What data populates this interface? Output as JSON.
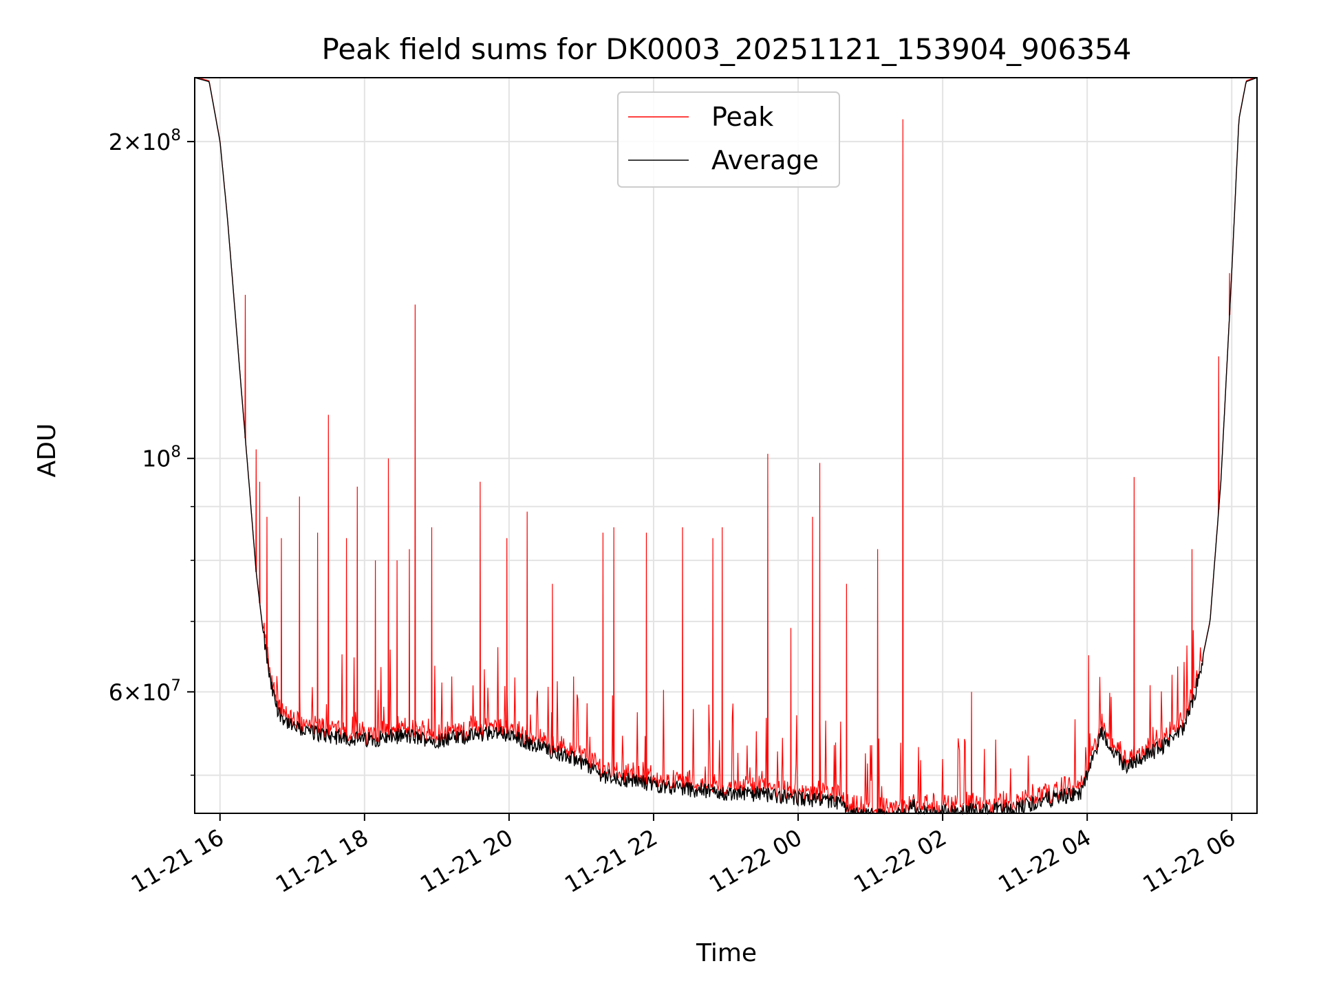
{
  "chart_data": {
    "type": "line",
    "title": "Peak field sums for DK0003_20251121_153904_906354",
    "xlabel": "Time",
    "ylabel": "ADU",
    "yscale": "log",
    "xlim": [
      15.65,
      30.35
    ],
    "ylim": [
      46000000,
      230000000
    ],
    "x_ticks": [
      {
        "value": 16,
        "label": "11-21 16"
      },
      {
        "value": 18,
        "label": "11-21 18"
      },
      {
        "value": 20,
        "label": "11-21 20"
      },
      {
        "value": 22,
        "label": "11-21 22"
      },
      {
        "value": 24,
        "label": "11-22 00"
      },
      {
        "value": 26,
        "label": "11-22 02"
      },
      {
        "value": 28,
        "label": "11-22 04"
      },
      {
        "value": 30,
        "label": "11-22 06"
      }
    ],
    "y_major_ticks": [
      {
        "value": 60000000,
        "mantissa": "6",
        "exponent": "7"
      },
      {
        "value": 100000000,
        "mantissa": "",
        "exponent": "8"
      },
      {
        "value": 200000000,
        "mantissa": "2",
        "exponent": "8"
      }
    ],
    "y_minor_ticks": [
      50000000,
      70000000,
      80000000,
      90000000
    ],
    "grid": true,
    "legend": {
      "location": "upper center",
      "entries": [
        {
          "name": "Peak",
          "color": "#ff0000"
        },
        {
          "name": "Average",
          "color": "#000000"
        }
      ]
    },
    "series": [
      {
        "name": "Average",
        "color": "#000000",
        "baseline": [
          [
            15.65,
            230000000
          ],
          [
            15.85,
            228000000
          ],
          [
            16.0,
            200000000
          ],
          [
            16.1,
            170000000
          ],
          [
            16.2,
            140000000
          ],
          [
            16.3,
            115000000
          ],
          [
            16.4,
            95000000
          ],
          [
            16.5,
            78000000
          ],
          [
            16.6,
            68000000
          ],
          [
            16.7,
            61000000
          ],
          [
            16.8,
            57500000
          ],
          [
            17.0,
            55500000
          ],
          [
            17.5,
            54500000
          ],
          [
            18.0,
            54000000
          ],
          [
            18.5,
            54500000
          ],
          [
            19.0,
            54000000
          ],
          [
            19.5,
            54500000
          ],
          [
            19.8,
            55000000
          ],
          [
            20.0,
            54500000
          ],
          [
            20.5,
            53000000
          ],
          [
            21.0,
            51500000
          ],
          [
            21.3,
            50000000
          ],
          [
            22.0,
            49000000
          ],
          [
            22.5,
            48500000
          ],
          [
            23.0,
            48000000
          ],
          [
            23.5,
            48000000
          ],
          [
            24.0,
            47500000
          ],
          [
            24.6,
            47000000
          ],
          [
            24.7,
            45800000
          ],
          [
            25.5,
            45800000
          ],
          [
            25.6,
            46800000
          ],
          [
            25.8,
            46000000
          ],
          [
            26.5,
            46300000
          ],
          [
            27.0,
            46500000
          ],
          [
            27.5,
            47500000
          ],
          [
            27.9,
            48000000
          ],
          [
            28.0,
            50000000
          ],
          [
            28.2,
            55000000
          ],
          [
            28.5,
            51000000
          ],
          [
            29.0,
            53000000
          ],
          [
            29.3,
            55000000
          ],
          [
            29.5,
            60000000
          ],
          [
            29.7,
            70000000
          ],
          [
            29.85,
            95000000
          ],
          [
            30.0,
            150000000
          ],
          [
            30.1,
            210000000
          ],
          [
            30.2,
            228000000
          ],
          [
            30.35,
            230000000
          ]
        ]
      },
      {
        "name": "Peak",
        "color": "#ff0000",
        "spikes": [
          [
            16.35,
            143000000
          ],
          [
            16.5,
            102000000
          ],
          [
            16.55,
            95000000
          ],
          [
            16.65,
            88000000
          ],
          [
            16.85,
            84000000
          ],
          [
            17.1,
            92000000
          ],
          [
            17.35,
            85000000
          ],
          [
            17.5,
            110000000
          ],
          [
            17.75,
            84000000
          ],
          [
            17.9,
            94000000
          ],
          [
            18.15,
            80000000
          ],
          [
            18.33,
            100000000
          ],
          [
            18.45,
            80000000
          ],
          [
            18.62,
            82000000
          ],
          [
            18.7,
            140000000
          ],
          [
            18.93,
            86000000
          ],
          [
            19.6,
            95000000
          ],
          [
            19.97,
            84000000
          ],
          [
            20.25,
            89000000
          ],
          [
            20.6,
            76000000
          ],
          [
            21.3,
            85000000
          ],
          [
            21.45,
            86000000
          ],
          [
            21.9,
            85000000
          ],
          [
            22.4,
            86000000
          ],
          [
            22.82,
            84000000
          ],
          [
            22.95,
            86000000
          ],
          [
            23.58,
            101000000
          ],
          [
            23.9,
            69000000
          ],
          [
            24.2,
            88000000
          ],
          [
            24.3,
            99000000
          ],
          [
            24.67,
            76000000
          ],
          [
            25.1,
            82000000
          ],
          [
            25.45,
            210000000
          ],
          [
            26.4,
            60000000
          ],
          [
            28.02,
            65000000
          ],
          [
            28.65,
            96000000
          ],
          [
            29.45,
            82000000
          ],
          [
            29.82,
            125000000
          ],
          [
            29.97,
            150000000
          ]
        ]
      }
    ]
  }
}
